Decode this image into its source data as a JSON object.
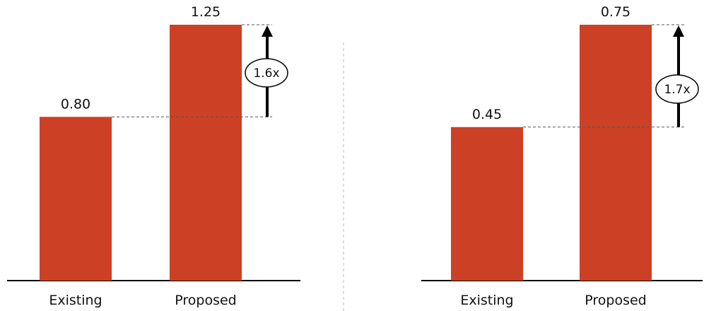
{
  "colors": {
    "bar": "#CC4125",
    "axis": "#000000",
    "guide": "#555555",
    "divider": "#bbbbbb"
  },
  "chart_data": [
    {
      "type": "bar",
      "categories": [
        "Existing",
        "Proposed"
      ],
      "values": [
        0.8,
        1.25
      ],
      "value_labels": [
        "0.80",
        "1.25"
      ],
      "annotation": "1.6x",
      "ylim": [
        0,
        1.25
      ],
      "grid": false
    },
    {
      "type": "bar",
      "categories": [
        "Existing",
        "Proposed"
      ],
      "values": [
        0.45,
        0.75
      ],
      "value_labels": [
        "0.45",
        "0.75"
      ],
      "annotation": "1.7x",
      "ylim": [
        0,
        0.75
      ],
      "grid": false
    }
  ]
}
